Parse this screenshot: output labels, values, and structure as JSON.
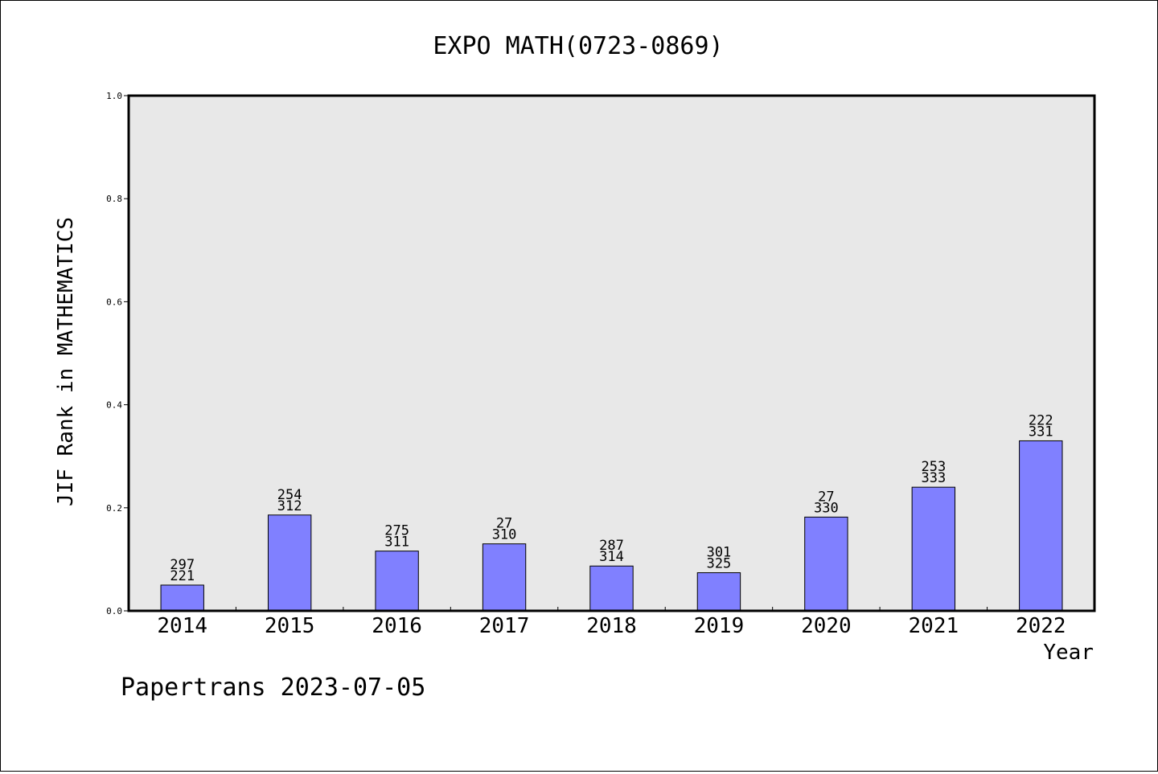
{
  "chart_data": {
    "type": "bar",
    "title": "EXPO MATH(0723-0869)",
    "xlabel": "Year",
    "ylabel": "JIF Rank in MATHEMATICS",
    "ylim": [
      0,
      1.0
    ],
    "yticks": [
      "0.0",
      "0.2",
      "0.4",
      "0.6",
      "0.8",
      "1.0"
    ],
    "categories": [
      "2014",
      "2015",
      "2016",
      "2017",
      "2018",
      "2019",
      "2020",
      "2021",
      "2022"
    ],
    "values": [
      0.05,
      0.186,
      0.116,
      0.13,
      0.087,
      0.074,
      0.182,
      0.24,
      0.33
    ],
    "bar_labels": [
      {
        "rank": "297",
        "total": "221"
      },
      {
        "rank": "254",
        "total": "312"
      },
      {
        "rank": "275",
        "total": "311"
      },
      {
        "rank": "27",
        "total": "310"
      },
      {
        "rank": "287",
        "total": "314"
      },
      {
        "rank": "301",
        "total": "325"
      },
      {
        "rank": "27",
        "total": "330"
      },
      {
        "rank": "253",
        "total": "333"
      },
      {
        "rank": "222",
        "total": "331"
      }
    ],
    "grid": false,
    "colors": {
      "bar": "#8080ff",
      "plot_background": "#e8e8e8"
    }
  },
  "footer": "Papertrans 2023-07-05"
}
